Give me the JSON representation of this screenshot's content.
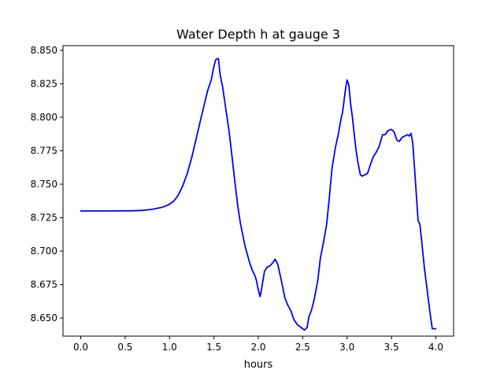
{
  "chart_data": {
    "type": "line",
    "title": "Water Depth h at gauge 3",
    "xlabel": "hours",
    "ylabel": "",
    "xlim": [
      -0.2,
      4.2
    ],
    "ylim": [
      8.6365,
      8.8535
    ],
    "xticks": [
      0.0,
      0.5,
      1.0,
      1.5,
      2.0,
      2.5,
      3.0,
      3.5,
      4.0
    ],
    "xtick_labels": [
      "0.0",
      "0.5",
      "1.0",
      "1.5",
      "2.0",
      "2.5",
      "3.0",
      "3.5",
      "4.0"
    ],
    "yticks": [
      8.65,
      8.675,
      8.7,
      8.725,
      8.75,
      8.775,
      8.8,
      8.825,
      8.85
    ],
    "ytick_labels": [
      "8.650",
      "8.675",
      "8.700",
      "8.725",
      "8.750",
      "8.775",
      "8.800",
      "8.825",
      "8.850"
    ],
    "grid": false,
    "series": [
      {
        "color": "#0000ff",
        "x": [
          0.0,
          0.3,
          0.6,
          0.7,
          0.8,
          0.9,
          0.95,
          1.0,
          1.05,
          1.1,
          1.15,
          1.2,
          1.25,
          1.3,
          1.35,
          1.4,
          1.43,
          1.47,
          1.5,
          1.52,
          1.55,
          1.57,
          1.6,
          1.63,
          1.67,
          1.7,
          1.73,
          1.77,
          1.8,
          1.85,
          1.9,
          1.93,
          1.96,
          1.98,
          2.0,
          2.02,
          2.04,
          2.07,
          2.1,
          2.13,
          2.16,
          2.19,
          2.22,
          2.26,
          2.3,
          2.33,
          2.37,
          2.4,
          2.44,
          2.48,
          2.52,
          2.55,
          2.57,
          2.6,
          2.63,
          2.67,
          2.7,
          2.73,
          2.77,
          2.8,
          2.83,
          2.87,
          2.9,
          2.93,
          2.95,
          2.98,
          3.0,
          3.02,
          3.04,
          3.06,
          3.08,
          3.1,
          3.12,
          3.15,
          3.17,
          3.2,
          3.23,
          3.25,
          3.28,
          3.3,
          3.33,
          3.36,
          3.4,
          3.43,
          3.46,
          3.5,
          3.53,
          3.56,
          3.59,
          3.62,
          3.65,
          3.68,
          3.7,
          3.72,
          3.74,
          3.76,
          3.78,
          3.8,
          3.82,
          3.84,
          3.87,
          3.9,
          3.93,
          3.96,
          4.0
        ],
        "y": [
          8.73,
          8.73,
          8.7302,
          8.7305,
          8.7312,
          8.7325,
          8.7335,
          8.735,
          8.7375,
          8.742,
          8.749,
          8.758,
          8.77,
          8.784,
          8.798,
          8.812,
          8.82,
          8.828,
          8.838,
          8.843,
          8.844,
          8.832,
          8.822,
          8.808,
          8.79,
          8.773,
          8.755,
          8.733,
          8.72,
          8.704,
          8.692,
          8.686,
          8.682,
          8.678,
          8.671,
          8.666,
          8.673,
          8.685,
          8.688,
          8.689,
          8.691,
          8.694,
          8.69,
          8.678,
          8.665,
          8.66,
          8.655,
          8.649,
          8.645,
          8.643,
          8.641,
          8.643,
          8.651,
          8.656,
          8.664,
          8.678,
          8.695,
          8.705,
          8.72,
          8.74,
          8.762,
          8.778,
          8.787,
          8.798,
          8.804,
          8.82,
          8.828,
          8.824,
          8.81,
          8.8,
          8.788,
          8.776,
          8.767,
          8.757,
          8.756,
          8.757,
          8.758,
          8.762,
          8.768,
          8.771,
          8.774,
          8.778,
          8.787,
          8.787,
          8.79,
          8.791,
          8.789,
          8.783,
          8.782,
          8.785,
          8.786,
          8.787,
          8.786,
          8.788,
          8.781,
          8.762,
          8.742,
          8.723,
          8.72,
          8.708,
          8.688,
          8.672,
          8.656,
          8.642,
          8.642
        ]
      }
    ]
  }
}
